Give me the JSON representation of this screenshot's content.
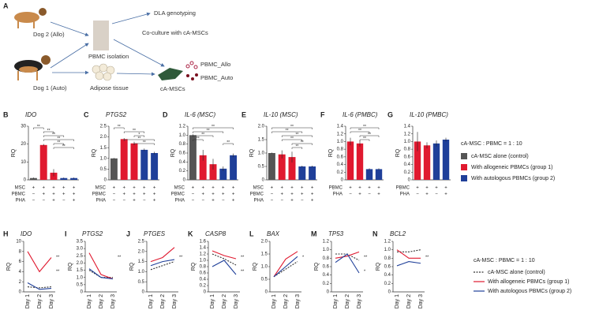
{
  "diagram": {
    "panel": "A",
    "dog2": "Dog 2 (Allo)",
    "dog1": "Dog 1 (Auto)",
    "pbmc": "PBMC isolation",
    "adipose": "Adipose tissue",
    "dla": "DLA genotyping",
    "coculture": "Co-culture with cA-MSCs",
    "msc": "cA-MSCs",
    "allo": "PBMC_Allo",
    "auto": "PBMC_Auto"
  },
  "bar_legend": {
    "title": "cA-MSC : PBMC = 1 : 10",
    "items": [
      {
        "name": "cA-MSC alone (control)",
        "color": "#555555"
      },
      {
        "name": "With allogeneic PBMCs (group 1)",
        "color": "#e0192f"
      },
      {
        "name": "With autologous PBMCs (group 2)",
        "color": "#1f3f99"
      }
    ]
  },
  "line_legend_title": "cA-MSC : PBMC = 1 : 10",
  "chart_data": [
    {
      "type": "bar",
      "label": "B",
      "title": "IDO",
      "ylabel": "RQ",
      "values": [
        1,
        19.5,
        4,
        1,
        1
      ],
      "errors": [
        0.3,
        0.6,
        2,
        0.3,
        0.3
      ],
      "colors": [
        "#555555",
        "#e0192f",
        "#e0192f",
        "#1f3f99",
        "#1f3f99"
      ],
      "ylim": [
        0,
        30
      ],
      "yticks": [
        0,
        10,
        20,
        30
      ],
      "conditions": [
        {
          "name": "MSC",
          "signs": [
            "+",
            "+",
            "+",
            "+",
            "+"
          ]
        },
        {
          "name": "PBMC",
          "signs": [
            "−",
            "+",
            "+",
            "+",
            "+"
          ]
        },
        {
          "name": "PHA",
          "signs": [
            "−",
            "−",
            "+",
            "−",
            "+"
          ]
        }
      ],
      "brackets": [
        {
          "label": "**",
          "bars": [
            0,
            1
          ]
        },
        {
          "label": "**",
          "bars": [
            1,
            2
          ]
        },
        {
          "label": "**",
          "bars": [
            1,
            3
          ]
        },
        {
          "label": "**",
          "bars": [
            1,
            4
          ]
        },
        {
          "label": "**",
          "bars": [
            2,
            3
          ]
        },
        {
          "label": "**",
          "bars": [
            2,
            4
          ]
        }
      ]
    },
    {
      "type": "bar",
      "label": "C",
      "title": "PTGS2",
      "ylabel": "RQ",
      "values": [
        1,
        1.9,
        1.7,
        1.4,
        1.25
      ],
      "errors": [
        0.02,
        0.05,
        0.08,
        0.06,
        0.06
      ],
      "colors": [
        "#555555",
        "#e0192f",
        "#e0192f",
        "#1f3f99",
        "#1f3f99"
      ],
      "ylim": [
        0,
        2.5
      ],
      "yticks": [
        0,
        0.5,
        {
          "value": 1,
          "label": "1.0"
        },
        1.5,
        {
          "value": 2,
          "label": "2.0"
        },
        2.5
      ],
      "conditions": [
        {
          "name": "MSC",
          "signs": [
            "+",
            "+",
            "+",
            "+",
            "+"
          ]
        },
        {
          "name": "PBMC",
          "signs": [
            "−",
            "+",
            "+",
            "+",
            "+"
          ]
        },
        {
          "name": "PHA",
          "signs": [
            "−",
            "−",
            "+",
            "−",
            "+"
          ]
        }
      ],
      "brackets": [
        {
          "label": "**",
          "bars": [
            0,
            1
          ]
        },
        {
          "label": "**",
          "bars": [
            1,
            3
          ]
        },
        {
          "label": "*",
          "bars": [
            2,
            3
          ]
        },
        {
          "label": "**",
          "bars": [
            1,
            4
          ]
        },
        {
          "label": "**",
          "bars": [
            2,
            4
          ]
        }
      ]
    },
    {
      "type": "bar",
      "label": "D",
      "title": "IL-6 (MSC)",
      "ylabel": "RQ",
      "values": [
        1,
        0.55,
        0.35,
        0.25,
        0.55
      ],
      "errors": [
        0.02,
        0.12,
        0.12,
        0.05,
        0.04
      ],
      "colors": [
        "#555555",
        "#e0192f",
        "#e0192f",
        "#1f3f99",
        "#1f3f99"
      ],
      "ylim": [
        0,
        1.2
      ],
      "yticks": [
        0,
        0.2,
        0.4,
        0.6,
        0.8,
        {
          "value": 1,
          "label": "1.0"
        },
        1.2
      ],
      "conditions": [
        {
          "name": "MSC",
          "signs": [
            "+",
            "+",
            "+",
            "+",
            "+"
          ]
        },
        {
          "name": "PBMC",
          "signs": [
            "−",
            "+",
            "+",
            "+",
            "+"
          ]
        },
        {
          "name": "PHA",
          "signs": [
            "−",
            "−",
            "+",
            "−",
            "+"
          ]
        }
      ],
      "brackets": [
        {
          "label": "**",
          "bars": [
            0,
            4
          ]
        },
        {
          "label": "**",
          "bars": [
            0,
            3
          ]
        },
        {
          "label": "**",
          "bars": [
            0,
            2
          ]
        },
        {
          "label": "**",
          "bars": [
            0,
            1
          ]
        },
        {
          "label": "**",
          "bars": [
            3,
            4
          ]
        }
      ]
    },
    {
      "type": "bar",
      "label": "E",
      "title": "IL-10 (MSC)",
      "ylabel": "RQ",
      "values": [
        1,
        0.95,
        0.85,
        0.5,
        0.5
      ],
      "errors": [
        0.02,
        0.15,
        0.2,
        0.03,
        0.03
      ],
      "colors": [
        "#555555",
        "#e0192f",
        "#e0192f",
        "#1f3f99",
        "#1f3f99"
      ],
      "ylim": [
        0,
        2
      ],
      "yticks": [
        0,
        0.5,
        {
          "value": 1,
          "label": "1.0"
        },
        1.5,
        {
          "value": 2,
          "label": "2.0"
        }
      ],
      "conditions": [
        {
          "name": "MSC",
          "signs": [
            "+",
            "+",
            "+",
            "+",
            "+"
          ]
        },
        {
          "name": "PBMC",
          "signs": [
            "−",
            "+",
            "+",
            "+",
            "+"
          ]
        },
        {
          "name": "PHA",
          "signs": [
            "−",
            "−",
            "+",
            "−",
            "+"
          ]
        }
      ],
      "brackets": [
        {
          "label": "**",
          "bars": [
            0,
            4
          ]
        },
        {
          "label": "**",
          "bars": [
            0,
            3
          ]
        },
        {
          "label": "**",
          "bars": [
            1,
            4
          ]
        },
        {
          "label": "**",
          "bars": [
            1,
            3
          ]
        },
        {
          "label": "**",
          "bars": [
            2,
            4
          ]
        },
        {
          "label": "**",
          "bars": [
            2,
            3
          ]
        }
      ]
    },
    {
      "type": "bar",
      "label": "F",
      "title": "IL-6 (PMBC)",
      "ylabel": "RQ",
      "values": [
        1,
        0.95,
        0.28,
        0.28
      ],
      "errors": [
        0.1,
        0.08,
        0.02,
        0.02
      ],
      "colors": [
        "#e0192f",
        "#e0192f",
        "#1f3f99",
        "#1f3f99"
      ],
      "ylim": [
        0,
        1.4
      ],
      "yticks": [
        0,
        0.2,
        0.4,
        0.6,
        0.8,
        {
          "value": 1,
          "label": "1.0"
        },
        1.2,
        1.4
      ],
      "conditions": [
        {
          "name": "PBMC",
          "signs": [
            "+",
            "+",
            "+",
            "+"
          ]
        },
        {
          "name": "PHA",
          "signs": [
            "−",
            "+",
            "−",
            "+"
          ]
        }
      ],
      "brackets": [
        {
          "label": "**",
          "bars": [
            0,
            3
          ]
        },
        {
          "label": "**",
          "bars": [
            0,
            2
          ]
        },
        {
          "label": "**",
          "bars": [
            1,
            3
          ]
        },
        {
          "label": "**",
          "bars": [
            1,
            2
          ]
        }
      ]
    },
    {
      "type": "bar",
      "label": "G",
      "title": "IL-10 (PMBC)",
      "ylabel": "RQ",
      "values": [
        1,
        0.9,
        0.95,
        1.05
      ],
      "errors": [
        0.25,
        0.08,
        0.08,
        0.05
      ],
      "colors": [
        "#e0192f",
        "#e0192f",
        "#1f3f99",
        "#1f3f99"
      ],
      "ylim": [
        0,
        1.4
      ],
      "yticks": [
        0,
        0.2,
        0.4,
        0.6,
        0.8,
        {
          "value": 1,
          "label": "1.0"
        },
        1.2,
        1.4
      ],
      "conditions": [
        {
          "name": "PBMC",
          "signs": [
            "+",
            "+",
            "+",
            "+"
          ]
        },
        {
          "name": "PHA",
          "signs": [
            "−",
            "+",
            "−",
            "+"
          ]
        }
      ],
      "brackets": []
    },
    {
      "type": "line",
      "label": "H",
      "title": "IDO",
      "ylabel": "RQ",
      "categories": [
        "Day 1",
        "Day 2",
        "Day 3"
      ],
      "ylim": [
        0,
        10
      ],
      "yticks": [
        0,
        2,
        4,
        6,
        8,
        10
      ],
      "annotations": [
        "**",
        "**"
      ],
      "series": [
        {
          "name": "cA-MSC alone (control)",
          "color": "#333333",
          "style": "dashed",
          "values": [
            1,
            0.8,
            1
          ]
        },
        {
          "name": "With allogeneic PBMCs (group 1)",
          "color": "#e0192f",
          "style": "solid",
          "values": [
            8,
            4,
            6.8
          ]
        },
        {
          "name": "With autologous PBMCs (group 2)",
          "color": "#1f3f99",
          "style": "solid",
          "values": [
            1.8,
            0.5,
            0.7
          ]
        }
      ]
    },
    {
      "type": "line",
      "label": "I",
      "title": "PTGS2",
      "ylabel": "RQ",
      "categories": [
        "Day 1",
        "Day 2",
        "Day 3"
      ],
      "ylim": [
        0,
        3.5
      ],
      "yticks": [
        0,
        0.5,
        {
          "value": 1,
          "label": "1.0"
        },
        1.5,
        {
          "value": 2,
          "label": "2.0"
        },
        2.5,
        {
          "value": 3,
          "label": "3.0"
        },
        3.5
      ],
      "annotations": [
        "**"
      ],
      "series": [
        {
          "name": "cA-MSC alone (control)",
          "color": "#333333",
          "style": "dashed",
          "values": [
            1.5,
            1,
            1
          ]
        },
        {
          "name": "With allogeneic PBMCs (group 1)",
          "color": "#e0192f",
          "style": "solid",
          "values": [
            2.7,
            1.2,
            0.9
          ]
        },
        {
          "name": "With autologous PBMCs (group 2)",
          "color": "#1f3f99",
          "style": "solid",
          "values": [
            1.6,
            1,
            0.9
          ]
        }
      ]
    },
    {
      "type": "line",
      "label": "J",
      "title": "PTGES",
      "ylabel": "RQ",
      "categories": [
        "Day 1",
        "Day 2",
        "Day 3"
      ],
      "ylim": [
        0,
        2.5
      ],
      "yticks": [
        0,
        0.5,
        {
          "value": 1,
          "label": "1.0"
        },
        1.5,
        {
          "value": 2,
          "label": "2.0"
        },
        2.5
      ],
      "annotations": [
        "**"
      ],
      "series": [
        {
          "name": "cA-MSC alone (control)",
          "color": "#333333",
          "style": "dashed",
          "values": [
            1.1,
            1.3,
            1.5
          ]
        },
        {
          "name": "With allogeneic PBMCs (group 1)",
          "color": "#e0192f",
          "style": "solid",
          "values": [
            1.5,
            1.7,
            2.2
          ]
        },
        {
          "name": "With autologous PBMCs (group 2)",
          "color": "#1f3f99",
          "style": "solid",
          "values": [
            1.3,
            1.5,
            1.6
          ]
        }
      ]
    },
    {
      "type": "line",
      "label": "K",
      "title": "CASP8",
      "ylabel": "RQ",
      "categories": [
        "Day 1",
        "Day 2",
        "Day 3"
      ],
      "ylim": [
        0,
        1.6
      ],
      "yticks": [
        0,
        0.2,
        0.4,
        0.6,
        0.8,
        {
          "value": 1,
          "label": "1.0"
        },
        1.2,
        1.4,
        1.6
      ],
      "annotations": [
        "**",
        "**"
      ],
      "series": [
        {
          "name": "cA-MSC alone (control)",
          "color": "#333333",
          "style": "dashed",
          "values": [
            1.2,
            1.05,
            0.85
          ]
        },
        {
          "name": "With allogeneic PBMCs (group 1)",
          "color": "#e0192f",
          "style": "solid",
          "values": [
            1.3,
            1.15,
            1.05
          ]
        },
        {
          "name": "With autologous PBMCs (group 2)",
          "color": "#1f3f99",
          "style": "solid",
          "values": [
            0.8,
            1,
            0.55
          ]
        }
      ]
    },
    {
      "type": "line",
      "label": "L",
      "title": "BAX",
      "ylabel": "RQ",
      "categories": [
        "Day 1",
        "Day 2",
        "Day 3"
      ],
      "ylim": [
        0,
        2
      ],
      "yticks": [
        0,
        0.5,
        {
          "value": 1,
          "label": "1.0"
        },
        1.5,
        {
          "value": 2,
          "label": "2.0"
        }
      ],
      "annotations": [
        "*"
      ],
      "series": [
        {
          "name": "cA-MSC alone (control)",
          "color": "#333333",
          "style": "dashed",
          "values": [
            0.6,
            0.9,
            1.2
          ]
        },
        {
          "name": "With allogeneic PBMCs (group 1)",
          "color": "#e0192f",
          "style": "solid",
          "values": [
            0.6,
            1.3,
            1.6
          ]
        },
        {
          "name": "With autologous PBMCs (group 2)",
          "color": "#1f3f99",
          "style": "solid",
          "values": [
            0.6,
            1,
            1.4
          ]
        }
      ]
    },
    {
      "type": "line",
      "label": "M",
      "title": "TP53",
      "ylabel": "RQ",
      "categories": [
        "Day 1",
        "Day 2",
        "Day 3"
      ],
      "ylim": [
        0,
        1.2
      ],
      "yticks": [
        0,
        0.2,
        0.4,
        0.6,
        0.8,
        {
          "value": 1,
          "label": "1.0"
        },
        1.2
      ],
      "annotations": [
        "**",
        "*"
      ],
      "series": [
        {
          "name": "cA-MSC alone (control)",
          "color": "#333333",
          "style": "dashed",
          "values": [
            0.9,
            0.9,
            0.75
          ]
        },
        {
          "name": "With allogeneic PBMCs (group 1)",
          "color": "#e0192f",
          "style": "solid",
          "values": [
            0.8,
            0.85,
            0.95
          ]
        },
        {
          "name": "With autologous PBMCs (group 2)",
          "color": "#1f3f99",
          "style": "solid",
          "values": [
            0.7,
            0.9,
            0.45
          ]
        }
      ]
    },
    {
      "type": "line",
      "label": "N",
      "title": "BCL2",
      "ylabel": "RQ",
      "categories": [
        "Day 1",
        "Day 2",
        "Day 3"
      ],
      "ylim": [
        0,
        1.2
      ],
      "yticks": [
        0,
        0.2,
        0.4,
        0.6,
        0.8,
        {
          "value": 1,
          "label": "1.0"
        },
        1.2
      ],
      "annotations": [
        "**"
      ],
      "series": [
        {
          "name": "cA-MSC alone (control)",
          "color": "#333333",
          "style": "dashed",
          "values": [
            0.95,
            0.95,
            1
          ]
        },
        {
          "name": "With allogeneic PBMCs (group 1)",
          "color": "#e0192f",
          "style": "solid",
          "values": [
            1,
            0.8,
            0.8
          ]
        },
        {
          "name": "With autologous PBMCs (group 2)",
          "color": "#1f3f99",
          "style": "solid",
          "values": [
            0.62,
            0.72,
            0.68
          ]
        }
      ]
    }
  ]
}
